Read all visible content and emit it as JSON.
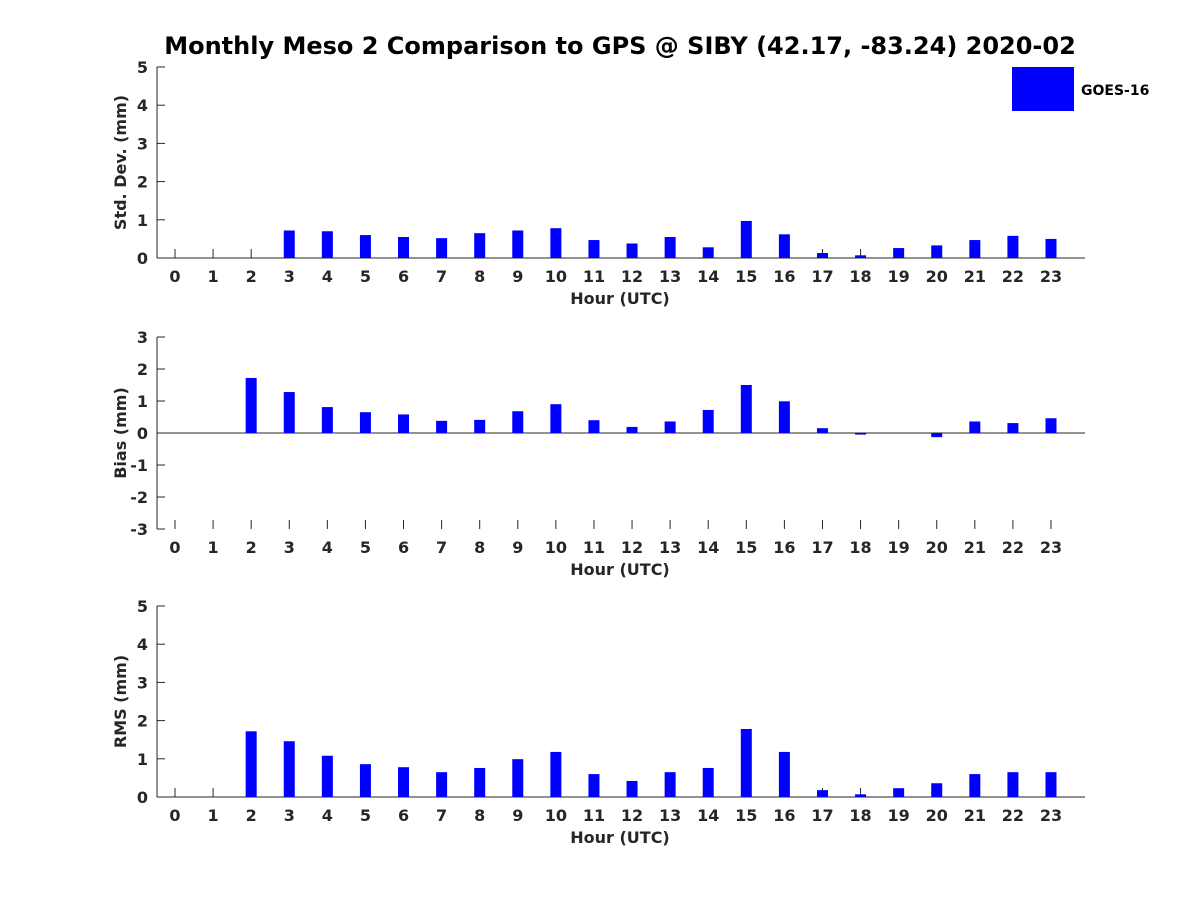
{
  "title": "Monthly Meso 2 Comparison to GPS @ SIBY (42.17, -83.24) 2020-02",
  "legend": {
    "label": "GOES-16",
    "color": "#0000ff",
    "placement": "top-right"
  },
  "chart_data": [
    {
      "type": "bar",
      "name": "std-dev",
      "categories": [
        "0",
        "1",
        "2",
        "3",
        "4",
        "5",
        "6",
        "7",
        "8",
        "9",
        "10",
        "11",
        "12",
        "13",
        "14",
        "15",
        "16",
        "17",
        "18",
        "19",
        "20",
        "21",
        "22",
        "23"
      ],
      "series": [
        {
          "name": "GOES-16",
          "values": [
            null,
            null,
            null,
            0.72,
            0.7,
            0.6,
            0.55,
            0.52,
            0.65,
            0.72,
            0.78,
            0.47,
            0.38,
            0.55,
            0.28,
            0.97,
            0.62,
            0.13,
            0.07,
            0.26,
            0.33,
            0.47,
            0.58,
            0.5
          ]
        }
      ],
      "xlabel": "Hour (UTC)",
      "ylabel": "Std. Dev. (mm)",
      "ylim": [
        0,
        5
      ],
      "yticks": [
        "0",
        "1",
        "2",
        "3",
        "4",
        "5"
      ]
    },
    {
      "type": "bar",
      "name": "bias",
      "categories": [
        "0",
        "1",
        "2",
        "3",
        "4",
        "5",
        "6",
        "7",
        "8",
        "9",
        "10",
        "11",
        "12",
        "13",
        "14",
        "15",
        "16",
        "17",
        "18",
        "19",
        "20",
        "21",
        "22",
        "23"
      ],
      "series": [
        {
          "name": "GOES-16",
          "values": [
            null,
            null,
            1.72,
            1.28,
            0.81,
            0.65,
            0.58,
            0.38,
            0.41,
            0.68,
            0.9,
            0.4,
            0.19,
            0.36,
            0.72,
            1.5,
            0.99,
            0.15,
            -0.05,
            null,
            -0.13,
            0.36,
            0.31,
            0.46
          ]
        }
      ],
      "xlabel": "Hour (UTC)",
      "ylabel": "Bias (mm)",
      "ylim": [
        -3,
        3
      ],
      "yticks": [
        "-3",
        "-2",
        "-1",
        "0",
        "1",
        "2",
        "3"
      ]
    },
    {
      "type": "bar",
      "name": "rms",
      "categories": [
        "0",
        "1",
        "2",
        "3",
        "4",
        "5",
        "6",
        "7",
        "8",
        "9",
        "10",
        "11",
        "12",
        "13",
        "14",
        "15",
        "16",
        "17",
        "18",
        "19",
        "20",
        "21",
        "22",
        "23"
      ],
      "series": [
        {
          "name": "GOES-16",
          "values": [
            null,
            null,
            1.72,
            1.46,
            1.08,
            0.86,
            0.78,
            0.65,
            0.76,
            0.99,
            1.18,
            0.6,
            0.42,
            0.65,
            0.76,
            1.78,
            1.18,
            0.18,
            0.07,
            0.23,
            0.36,
            0.6,
            0.65,
            0.65
          ]
        }
      ],
      "xlabel": "Hour (UTC)",
      "ylabel": "RMS (mm)",
      "ylim": [
        0,
        5
      ],
      "yticks": [
        "0",
        "1",
        "2",
        "3",
        "4",
        "5"
      ]
    }
  ]
}
